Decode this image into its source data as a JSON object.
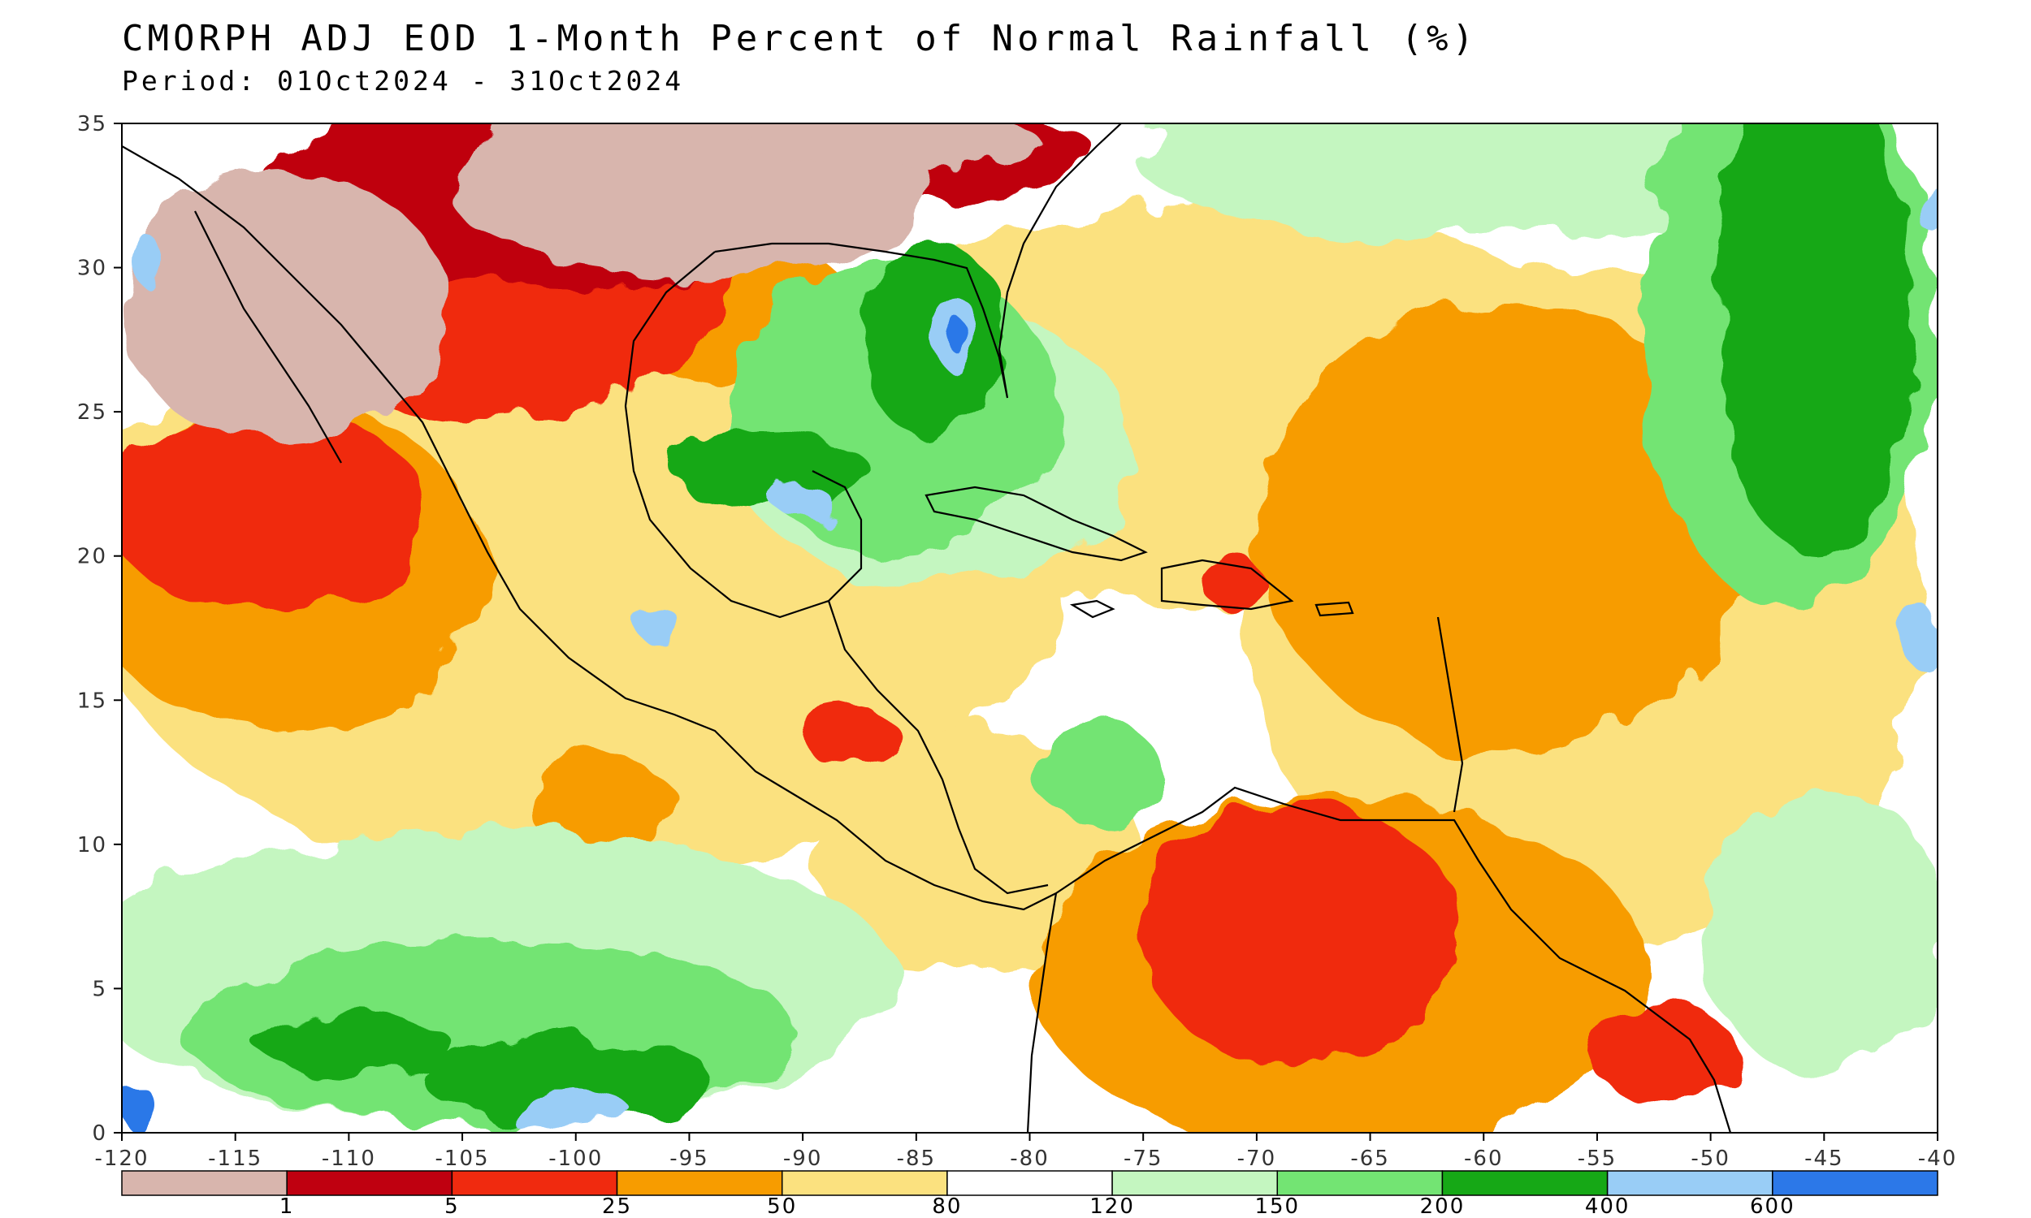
{
  "header": {
    "title": "CMORPH ADJ EOD 1-Month Percent of Normal Rainfall (%)",
    "subtitle": "Period: 01Oct2024 - 31Oct2024"
  },
  "map": {
    "lon_range": [
      -120,
      -40
    ],
    "lat_range": [
      0,
      35
    ],
    "lon_ticks": [
      "-120",
      "-115",
      "-110",
      "-105",
      "-100",
      "-95",
      "-90",
      "-85",
      "-80",
      "-75",
      "-70",
      "-65",
      "-60",
      "-55",
      "-50",
      "-45",
      "-40"
    ],
    "lat_ticks": [
      "0",
      "5",
      "10",
      "15",
      "20",
      "25",
      "30",
      "35"
    ]
  },
  "colorbar": {
    "colors": [
      "#d8b5ad",
      "#bf0010",
      "#f02a0f",
      "#f79c00",
      "#fbe17f",
      "#ffffff",
      "#c4f6c0",
      "#73e473",
      "#16a816",
      "#99cdf6",
      "#2c78e8"
    ],
    "labels": [
      "1",
      "5",
      "25",
      "50",
      "80",
      "120",
      "150",
      "200",
      "400",
      "600"
    ]
  }
}
